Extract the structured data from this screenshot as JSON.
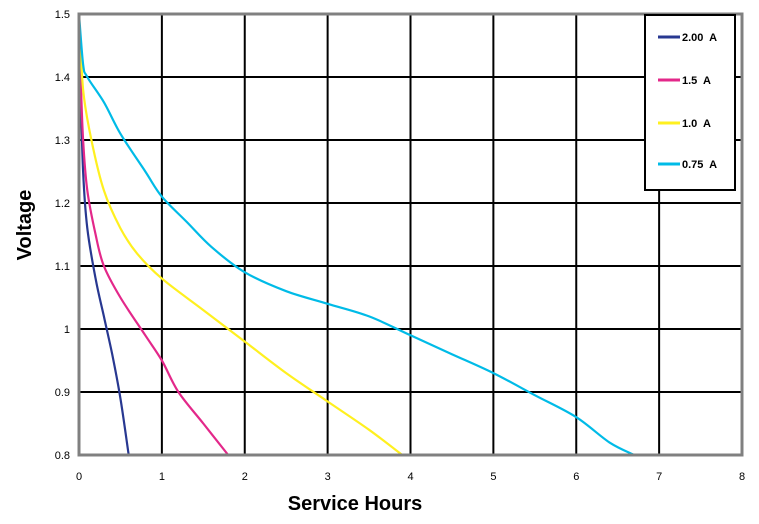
{
  "chart_data": {
    "type": "line",
    "title": "",
    "xlabel": "Service Hours",
    "ylabel": "Voltage",
    "xlim": [
      0,
      8
    ],
    "ylim": [
      0.8,
      1.5
    ],
    "x_ticks": [
      "0",
      "1",
      "2",
      "3",
      "4",
      "5",
      "6",
      "7",
      "8"
    ],
    "y_ticks": [
      "0.8",
      "0.9",
      "1",
      "1.1",
      "1.2",
      "1.3",
      "1.4",
      "1.5"
    ],
    "grid": true,
    "legend_position": "top-right",
    "series": [
      {
        "name": "2.00  A",
        "color": "#283891",
        "points": [
          [
            0.0,
            1.5
          ],
          [
            0.02,
            1.38
          ],
          [
            0.05,
            1.25
          ],
          [
            0.1,
            1.16
          ],
          [
            0.2,
            1.08
          ],
          [
            0.3,
            1.02
          ],
          [
            0.4,
            0.96
          ],
          [
            0.5,
            0.89
          ],
          [
            0.6,
            0.8
          ]
        ]
      },
      {
        "name": "1.5  A",
        "color": "#e3288a",
        "points": [
          [
            0.0,
            1.5
          ],
          [
            0.02,
            1.4
          ],
          [
            0.05,
            1.3
          ],
          [
            0.1,
            1.22
          ],
          [
            0.2,
            1.15
          ],
          [
            0.3,
            1.1
          ],
          [
            0.5,
            1.05
          ],
          [
            0.8,
            0.99
          ],
          [
            1.0,
            0.95
          ],
          [
            1.2,
            0.9
          ],
          [
            1.5,
            0.85
          ],
          [
            1.8,
            0.8
          ]
        ]
      },
      {
        "name": "1.0  A",
        "color": "#fff01f",
        "points": [
          [
            0.0,
            1.5
          ],
          [
            0.05,
            1.38
          ],
          [
            0.15,
            1.3
          ],
          [
            0.3,
            1.22
          ],
          [
            0.5,
            1.16
          ],
          [
            0.7,
            1.12
          ],
          [
            1.0,
            1.08
          ],
          [
            1.5,
            1.03
          ],
          [
            2.0,
            0.98
          ],
          [
            2.5,
            0.93
          ],
          [
            3.0,
            0.885
          ],
          [
            3.5,
            0.84
          ],
          [
            3.9,
            0.8
          ]
        ]
      },
      {
        "name": "0.75  A",
        "color": "#00bbe7",
        "points": [
          [
            0.0,
            1.5
          ],
          [
            0.05,
            1.42
          ],
          [
            0.1,
            1.4
          ],
          [
            0.3,
            1.36
          ],
          [
            0.5,
            1.31
          ],
          [
            0.8,
            1.25
          ],
          [
            1.0,
            1.21
          ],
          [
            1.3,
            1.17
          ],
          [
            1.6,
            1.13
          ],
          [
            2.0,
            1.09
          ],
          [
            2.5,
            1.06
          ],
          [
            3.0,
            1.04
          ],
          [
            3.5,
            1.02
          ],
          [
            4.0,
            0.99
          ],
          [
            4.5,
            0.96
          ],
          [
            5.0,
            0.93
          ],
          [
            5.5,
            0.895
          ],
          [
            6.0,
            0.86
          ],
          [
            6.4,
            0.82
          ],
          [
            6.7,
            0.8
          ]
        ]
      }
    ]
  }
}
